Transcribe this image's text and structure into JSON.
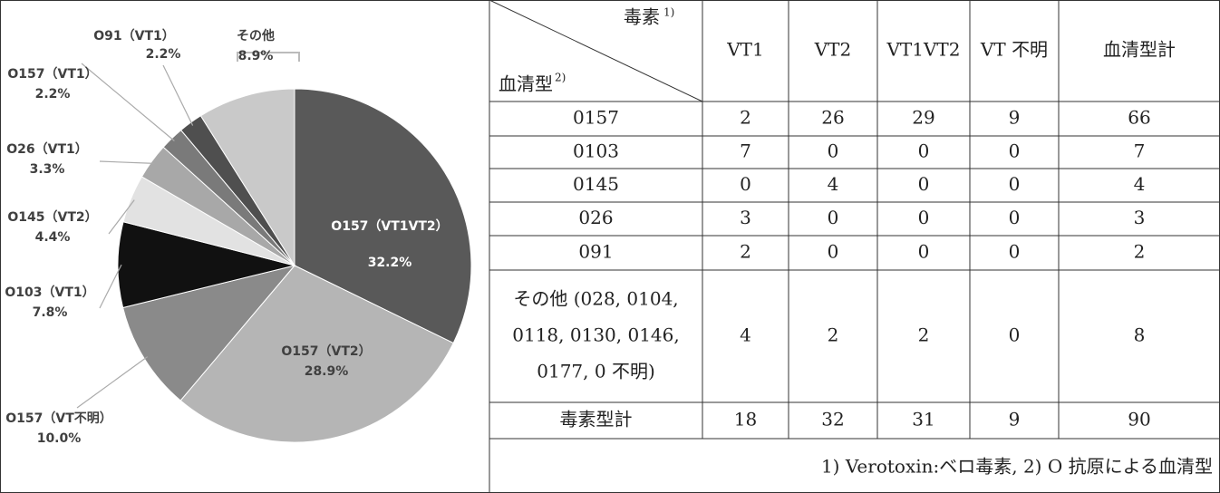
{
  "chart_data": {
    "type": "pie",
    "categories": [
      "O157（VT1VT2）",
      "O157（VT2）",
      "O157（VT不明）",
      "O103（VT1）",
      "O145（VT2）",
      "O26（VT1）",
      "O157（VT1）",
      "O91（VT1）",
      "その他"
    ],
    "values": [
      32.2,
      28.9,
      10.0,
      7.8,
      4.4,
      3.3,
      2.2,
      2.2,
      8.9
    ],
    "value_labels": [
      "32.2%",
      "28.9%",
      "10.0%",
      "7.8%",
      "4.4%",
      "3.3%",
      "2.2%",
      "2.2%",
      "8.9%"
    ],
    "colors": [
      "#595959",
      "#b5b5b5",
      "#8a8a8a",
      "#111111",
      "#e2e2e2",
      "#a8a8a8",
      "#7a7a7a",
      "#4f4f4f",
      "#c9c9c9"
    ]
  },
  "table": {
    "corner": {
      "top": "毒素",
      "top_note": "1)",
      "bottom": "血清型",
      "bottom_note": "2)"
    },
    "columns": [
      "VT1",
      "VT2",
      "VT1VT2",
      "VT 不明",
      "血清型計"
    ],
    "rows": [
      [
        "0157",
        "2",
        "26",
        "29",
        "9",
        "66"
      ],
      [
        "0103",
        "7",
        "0",
        "0",
        "0",
        "7"
      ],
      [
        "0145",
        "0",
        "4",
        "0",
        "0",
        "4"
      ],
      [
        "026",
        "3",
        "0",
        "0",
        "0",
        "3"
      ],
      [
        "091",
        "2",
        "0",
        "0",
        "0",
        "2"
      ],
      [
        [
          "その他 (028, 0104,",
          "0118, 0130, 0146,",
          "0177, 0 不明)"
        ],
        "4",
        "2",
        "2",
        "0",
        "8"
      ],
      [
        "毒素型計",
        "18",
        "32",
        "31",
        "9",
        "90"
      ]
    ],
    "footnote": "1) Verotoxin:ベロ毒素, 2) O 抗原による血清型"
  }
}
